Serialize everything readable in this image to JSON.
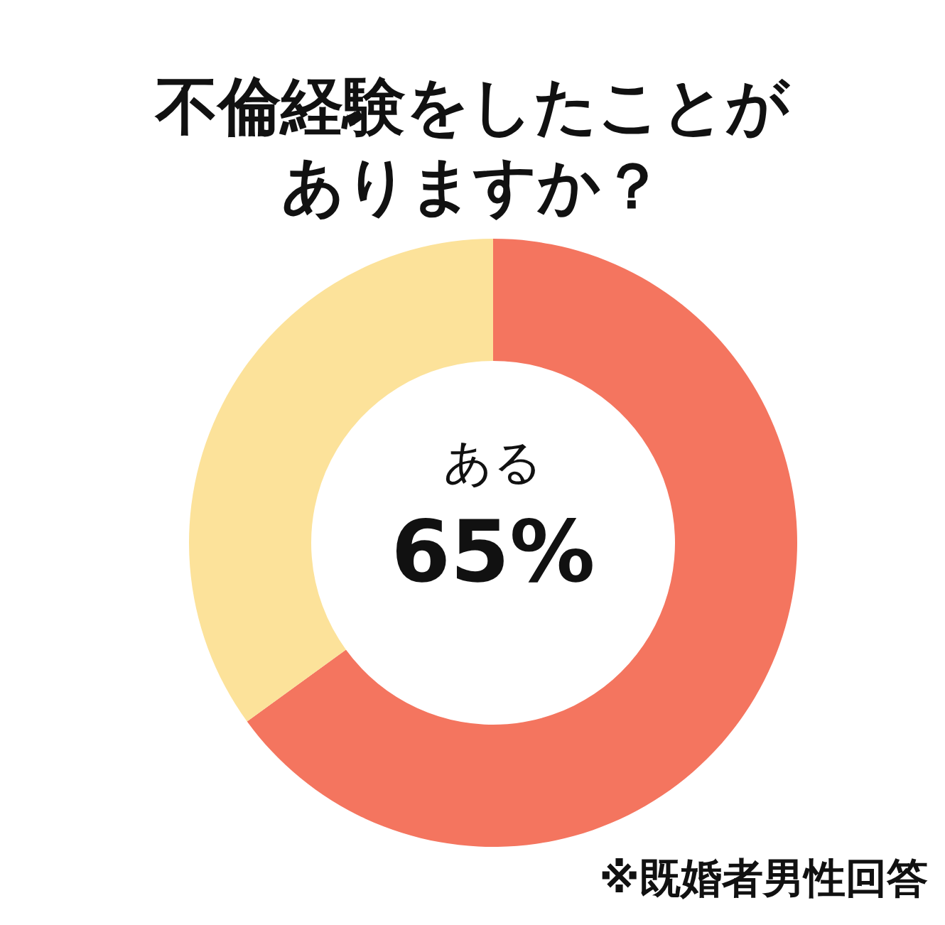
{
  "chart_data": {
    "type": "donut",
    "title": "不倫経験をしたことがありますか？",
    "categories": [
      "ある",
      null
    ],
    "values": [
      65,
      35
    ],
    "colors": [
      "#f4755f",
      "#fce29a"
    ],
    "value_labels": [
      "65%",
      null
    ],
    "annotations": [
      "※既婚者男性回答"
    ]
  }
}
